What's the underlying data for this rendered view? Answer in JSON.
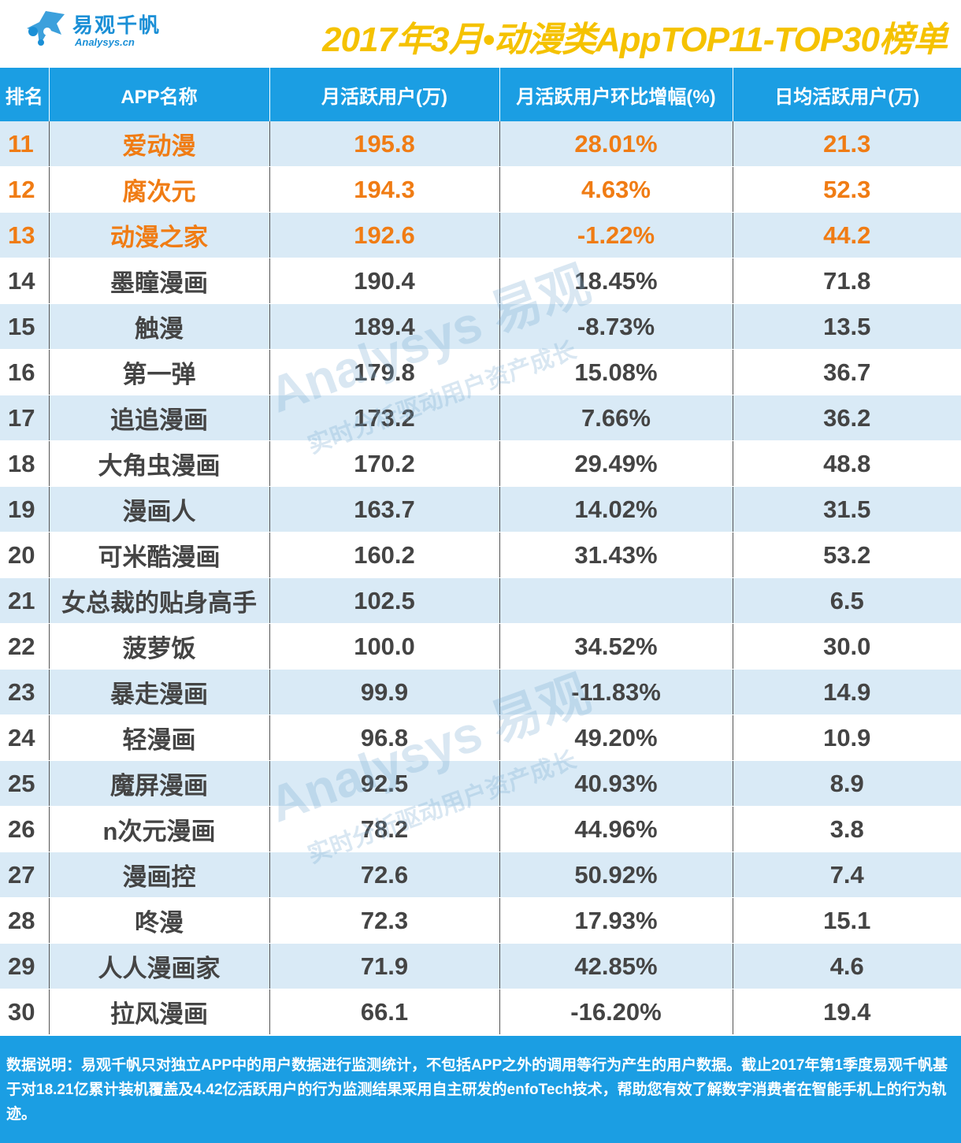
{
  "header": {
    "brand_cn": "易观千帆",
    "brand_en": "Analysys.cn",
    "title": "2017年3月•动漫类AppTOP11-TOP30榜单"
  },
  "colors": {
    "header_blue": "#1b9ee3",
    "highlight": "#f07c14",
    "title_yellow": "#f5c200",
    "stripe": "#d9eaf6"
  },
  "watermark": {
    "big": "Analysys 易观",
    "small": "实时分析驱动用户资产成长"
  },
  "chart_data": {
    "type": "table",
    "columns": [
      "排名",
      "APP名称",
      "月活跃用户(万)",
      "月活跃用户环比增幅(%)",
      "日均活跃用户(万)"
    ],
    "rows": [
      [
        "11",
        "爱动漫",
        "195.8",
        "28.01%",
        "21.3"
      ],
      [
        "12",
        "腐次元",
        "194.3",
        "4.63%",
        "52.3"
      ],
      [
        "13",
        "动漫之家",
        "192.6",
        "-1.22%",
        "44.2"
      ],
      [
        "14",
        "墨瞳漫画",
        "190.4",
        "18.45%",
        "71.8"
      ],
      [
        "15",
        "触漫",
        "189.4",
        "-8.73%",
        "13.5"
      ],
      [
        "16",
        "第一弹",
        "179.8",
        "15.08%",
        "36.7"
      ],
      [
        "17",
        "追追漫画",
        "173.2",
        "7.66%",
        "36.2"
      ],
      [
        "18",
        "大角虫漫画",
        "170.2",
        "29.49%",
        "48.8"
      ],
      [
        "19",
        "漫画人",
        "163.7",
        "14.02%",
        "31.5"
      ],
      [
        "20",
        "可米酷漫画",
        "160.2",
        "31.43%",
        "53.2"
      ],
      [
        "21",
        "女总裁的贴身高手",
        "102.5",
        "",
        "6.5"
      ],
      [
        "22",
        "菠萝饭",
        "100.0",
        "34.52%",
        "30.0"
      ],
      [
        "23",
        "暴走漫画",
        "99.9",
        "-11.83%",
        "14.9"
      ],
      [
        "24",
        "轻漫画",
        "96.8",
        "49.20%",
        "10.9"
      ],
      [
        "25",
        "魔屏漫画",
        "92.5",
        "40.93%",
        "8.9"
      ],
      [
        "26",
        "n次元漫画",
        "78.2",
        "44.96%",
        "3.8"
      ],
      [
        "27",
        "漫画控",
        "72.6",
        "50.92%",
        "7.4"
      ],
      [
        "28",
        "咚漫",
        "72.3",
        "17.93%",
        "15.1"
      ],
      [
        "29",
        "人人漫画家",
        "71.9",
        "42.85%",
        "4.6"
      ],
      [
        "30",
        "拉风漫画",
        "66.1",
        "-16.20%",
        "19.4"
      ]
    ],
    "highlighted_ranks": [
      "11",
      "12",
      "13"
    ]
  },
  "footer": {
    "note": "数据说明：易观千帆只对独立APP中的用户数据进行监测统计，不包括APP之外的调用等行为产生的用户数据。截止2017年第1季度易观千帆基于对18.21亿累计装机覆盖及4.42亿活跃用户的行为监测结果采用自主研发的enfoTech技术，帮助您有效了解数字消费者在智能手机上的行为轨迹。"
  }
}
